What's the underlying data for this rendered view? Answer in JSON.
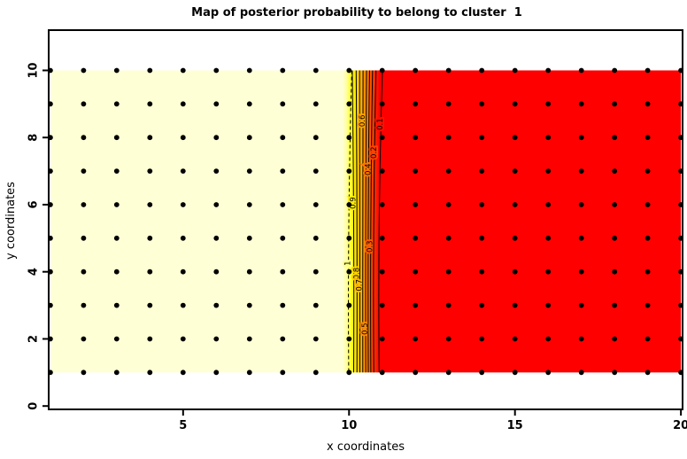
{
  "title": "Map of posterior probability to belong to cluster  1",
  "axes": {
    "xlabel": "x coordinates",
    "ylabel": "y coordinates",
    "x_ticks": [
      5,
      10,
      15,
      20
    ],
    "y_ticks": [
      0,
      2,
      4,
      6,
      8,
      10
    ]
  },
  "colors": {
    "high_probability": "#FFFFD6",
    "low_probability": "#FF0000",
    "contour_line": "#000000",
    "grid_dot": "#000000",
    "axis": "#000000"
  },
  "chart_data": {
    "type": "heatmap",
    "title": "Map of posterior probability to belong to cluster  1",
    "xlabel": "x coordinates",
    "ylabel": "y coordinates",
    "x_ticks": [
      5,
      10,
      15,
      20
    ],
    "y_ticks": [
      0,
      2,
      4,
      6,
      8,
      10
    ],
    "xlim": [
      0.95,
      20.05
    ],
    "ylim": [
      -0.1,
      11.2
    ],
    "grid_points": {
      "x_start": 1,
      "x_end": 20,
      "x_step": 1,
      "y_start": 1,
      "y_end": 10,
      "y_step": 1,
      "marker": "filled black circle"
    },
    "fill_extent": {
      "x_from": 1,
      "x_to": 20,
      "y_from": 1,
      "y_to": 10
    },
    "fill_regions": [
      {
        "name": "high-probability",
        "x_from": 1,
        "x_to": 9.8,
        "color": "#FFFFD6",
        "value": "posterior ~ 1"
      },
      {
        "name": "transition",
        "x_from": 9.8,
        "x_to": 10.92,
        "colors": [
          "#FFFFD6",
          "#FFFF9E",
          "#FFFF2A",
          "#FFE800",
          "#FFC300",
          "#FF9E00",
          "#FF7A00",
          "#FF4E00",
          "#FF2300",
          "#FF0000"
        ],
        "value": "posterior 1 -> 0"
      },
      {
        "name": "low-probability",
        "x_from": 10.92,
        "x_to": 20,
        "color": "#FF0000",
        "value": "posterior ~ 0"
      }
    ],
    "contours": [
      {
        "level": "1",
        "x": 9.95,
        "label_y": 4.25,
        "dashed": true
      },
      {
        "level": "0.9",
        "x": 10.16,
        "label_y": 6.05,
        "dashed": false
      },
      {
        "level": "0.8",
        "x": 10.25,
        "label_y": 3.95,
        "dashed": false
      },
      {
        "level": "0.7",
        "x": 10.33,
        "label_y": 3.6,
        "dashed": false
      },
      {
        "level": "0.6",
        "x": 10.41,
        "label_y": 8.5,
        "dashed": false
      },
      {
        "level": "0.5",
        "x": 10.49,
        "label_y": 2.3,
        "dashed": false
      },
      {
        "level": "0.4",
        "x": 10.56,
        "label_y": 7.05,
        "dashed": false
      },
      {
        "level": "0.3",
        "x": 10.63,
        "label_y": 4.75,
        "dashed": false
      },
      {
        "level": "0.2",
        "x": 10.71,
        "label_y": 7.55,
        "dashed": false
      },
      {
        "level": "0.1",
        "x": 10.86,
        "label_y": 8.4,
        "dashed": false
      }
    ],
    "legend": "none",
    "grid_lines": "off"
  }
}
